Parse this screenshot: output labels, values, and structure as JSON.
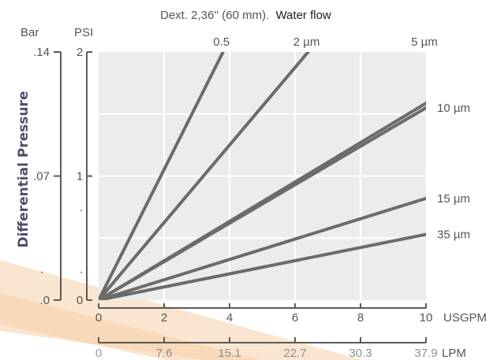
{
  "chart_data": {
    "type": "line",
    "title": {
      "prefix": "Dext. 2,36'' (60 mm).",
      "suffix": "Water flow"
    },
    "ylabel": "Differential Pressure",
    "units": {
      "bar": "Bar",
      "psi": "PSI",
      "usgpm": "USGPM",
      "lpm": "LPM"
    },
    "xlim": [
      0,
      10
    ],
    "ylim": [
      0,
      2
    ],
    "grid": true,
    "x_ticks": [
      {
        "value": 0,
        "label": "0"
      },
      {
        "value": 2,
        "label": "2"
      },
      {
        "value": 4,
        "label": "4"
      },
      {
        "value": 6,
        "label": "6"
      },
      {
        "value": 8,
        "label": "8"
      },
      {
        "value": 10,
        "label": "10"
      }
    ],
    "lpm_ticks": [
      {
        "value": 0,
        "label": "0"
      },
      {
        "value": 2,
        "label": "7.6"
      },
      {
        "value": 4,
        "label": "15.1"
      },
      {
        "value": 6,
        "label": "22.7"
      },
      {
        "value": 8,
        "label": "30.3"
      },
      {
        "value": 10,
        "label": "37.9"
      }
    ],
    "psi_ticks": [
      {
        "value": 0,
        "label": "0"
      },
      {
        "value": 0.25,
        "label": "."
      },
      {
        "value": 0.75,
        "label": "."
      },
      {
        "value": 1,
        "label": "1"
      },
      {
        "value": 2,
        "label": "2"
      }
    ],
    "bar_ticks": [
      {
        "value": 0,
        "label": ".0"
      },
      {
        "value": 0.25,
        "label": "."
      },
      {
        "value": 1,
        "label": ".07"
      },
      {
        "value": 2,
        "label": ".14"
      }
    ],
    "series": [
      {
        "name": "0.5",
        "x": [
          0,
          3.8
        ],
        "y": [
          0,
          2.0
        ]
      },
      {
        "name": "2 µm",
        "x": [
          0,
          6.4
        ],
        "y": [
          0,
          2.0
        ]
      },
      {
        "name": "5 µm",
        "x": [
          0,
          12.6
        ],
        "y": [
          0,
          2.0
        ]
      },
      {
        "name": "10 µm",
        "x": [
          0,
          10
        ],
        "y": [
          0,
          1.55
        ]
      },
      {
        "name": "15 µm",
        "x": [
          0,
          10
        ],
        "y": [
          0,
          0.82
        ]
      },
      {
        "name": "35 µm",
        "x": [
          0,
          10
        ],
        "y": [
          0,
          0.53
        ]
      }
    ],
    "colors": {
      "plot_bg": "#ececec",
      "grid": "#ffffff",
      "line": "#6b6b6b",
      "axis": "#5a5a5a"
    }
  }
}
